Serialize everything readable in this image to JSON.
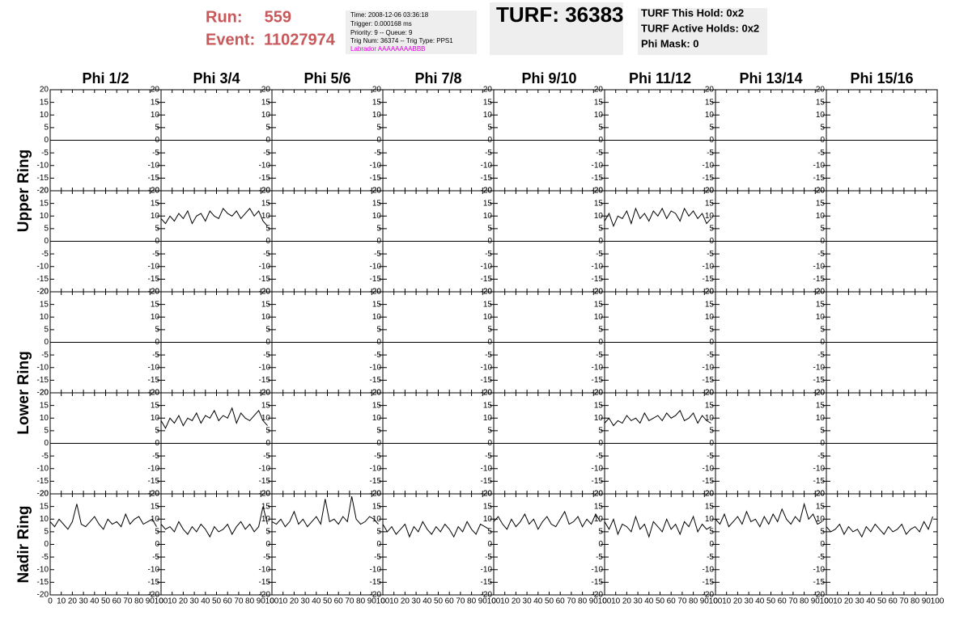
{
  "header": {
    "run_label": "Run:",
    "run": "559",
    "event_label": "Event:",
    "event": "11027974",
    "info": [
      "Time: 2008-12-06 03:36:18",
      "Trigger: 0.000168 ms",
      "Priority: 9 -- Queue: 9",
      "Trig Num: 36374 -- Trig Type: PPS1"
    ],
    "labrador": "Labrador AAAAAAAABBB",
    "turf": "TURF: 36383",
    "holds": [
      "TURF This Hold: 0x2",
      "TURF Active Holds: 0x2",
      "Phi Mask: 0"
    ]
  },
  "chart_data": {
    "type": "line",
    "color": "#000000",
    "columns": [
      "Phi 1/2",
      "Phi 3/4",
      "Phi 5/6",
      "Phi 7/8",
      "Phi 9/10",
      "Phi 11/12",
      "Phi 13/14",
      "Phi 15/16"
    ],
    "x": [
      0,
      4,
      8,
      12,
      16,
      20,
      24,
      28,
      32,
      36,
      40,
      44,
      48,
      52,
      56,
      60,
      64,
      68,
      72,
      76,
      80,
      84,
      88,
      92,
      96
    ],
    "xlim": [
      0,
      100
    ],
    "xticks": [
      0,
      10,
      20,
      30,
      40,
      50,
      60,
      70,
      80,
      90,
      100
    ],
    "ylim": [
      -20,
      20
    ],
    "yticks": [
      -20,
      -15,
      -10,
      -5,
      0,
      5,
      10,
      15,
      20
    ],
    "groups": [
      {
        "label": "Upper Ring",
        "zero_line": true,
        "rows": [
          [
            null,
            null,
            null,
            null,
            null,
            null,
            null,
            null
          ],
          [
            null,
            [
              9,
              7,
              10,
              8,
              11,
              9,
              12,
              7,
              10,
              11,
              8,
              12,
              10,
              9,
              13,
              11,
              10,
              12,
              9,
              11,
              13,
              10,
              12,
              8,
              6
            ],
            null,
            null,
            null,
            [
              8,
              11,
              6,
              10,
              9,
              12,
              7,
              13,
              9,
              11,
              8,
              12,
              10,
              13,
              9,
              12,
              11,
              8,
              13,
              10,
              12,
              9,
              11,
              7,
              9
            ],
            null,
            null
          ]
        ]
      },
      {
        "label": "Lower Ring",
        "zero_line": true,
        "rows": [
          [
            null,
            null,
            null,
            null,
            null,
            null,
            null,
            null
          ],
          [
            null,
            [
              9,
              6,
              10,
              8,
              11,
              7,
              10,
              9,
              12,
              8,
              11,
              10,
              13,
              9,
              11,
              10,
              14,
              8,
              12,
              10,
              9,
              11,
              13,
              9,
              7
            ],
            null,
            null,
            null,
            [
              8,
              10,
              7,
              9,
              8,
              11,
              9,
              10,
              8,
              12,
              9,
              10,
              11,
              9,
              12,
              10,
              11,
              13,
              9,
              10,
              12,
              8,
              11,
              9,
              8
            ],
            null,
            null
          ]
        ]
      },
      {
        "label": "Nadir Ring",
        "zero_line": false,
        "rows": [
          [
            [
              9,
              7,
              10,
              8,
              6,
              9,
              16,
              8,
              7,
              9,
              11,
              8,
              6,
              10,
              8,
              9,
              7,
              12,
              8,
              10,
              11,
              8,
              9,
              10,
              7
            ],
            [
              8,
              6,
              7,
              5,
              9,
              6,
              4,
              7,
              5,
              8,
              6,
              3,
              7,
              5,
              6,
              8,
              4,
              7,
              9,
              6,
              8,
              5,
              7,
              15,
              8
            ],
            [
              9,
              8,
              10,
              7,
              9,
              13,
              8,
              10,
              7,
              9,
              11,
              8,
              18,
              9,
              10,
              8,
              11,
              9,
              19,
              10,
              8,
              9,
              11,
              10,
              8
            ],
            [
              8,
              5,
              7,
              4,
              6,
              8,
              3,
              7,
              5,
              9,
              6,
              4,
              7,
              5,
              8,
              6,
              3,
              7,
              5,
              9,
              6,
              4,
              8,
              7,
              6
            ],
            [
              9,
              11,
              8,
              6,
              10,
              7,
              9,
              12,
              8,
              10,
              6,
              9,
              11,
              8,
              7,
              10,
              13,
              8,
              9,
              11,
              7,
              10,
              8,
              12,
              9
            ],
            [
              9,
              6,
              10,
              4,
              8,
              7,
              5,
              11,
              6,
              8,
              3,
              9,
              7,
              5,
              10,
              6,
              8,
              4,
              9,
              7,
              11,
              5,
              8,
              6,
              7
            ],
            [
              10,
              8,
              12,
              7,
              9,
              11,
              8,
              13,
              9,
              10,
              7,
              11,
              8,
              12,
              9,
              14,
              10,
              8,
              11,
              9,
              16,
              10,
              12,
              8,
              9
            ],
            [
              7,
              5,
              6,
              8,
              4,
              7,
              5,
              6,
              3,
              7,
              5,
              8,
              6,
              4,
              7,
              5,
              6,
              8,
              4,
              6,
              7,
              5,
              9,
              6,
              11
            ]
          ]
        ]
      }
    ]
  }
}
